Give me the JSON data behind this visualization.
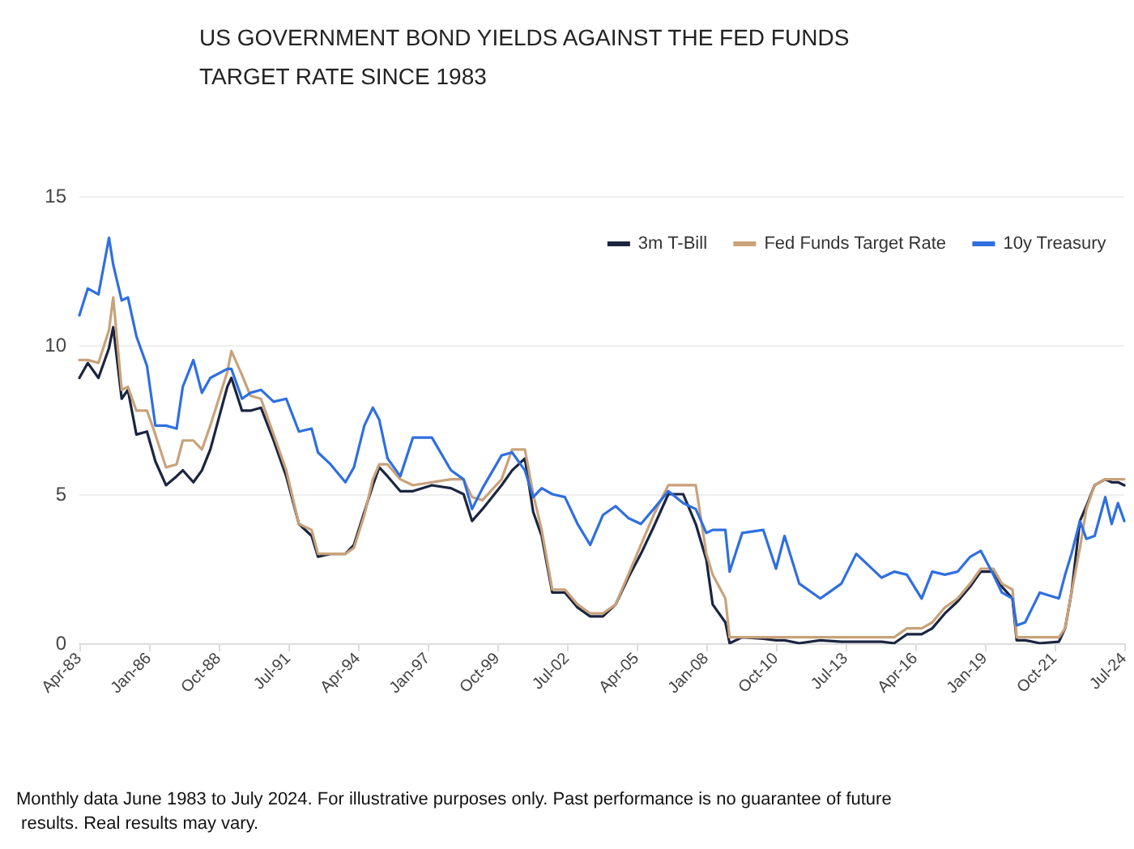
{
  "chart_data": {
    "type": "line",
    "title": "US GOVERNMENT BOND YIELDS AGAINST THE FED FUNDS TARGET RATE SINCE 1983",
    "x": [
      "1983-04",
      "1983-08",
      "1984-01",
      "1984-06",
      "1984-08",
      "1984-12",
      "1985-03",
      "1985-07",
      "1985-12",
      "1986-04",
      "1986-09",
      "1987-02",
      "1987-05",
      "1987-10",
      "1988-02",
      "1988-06",
      "1989-02",
      "1989-04",
      "1989-09",
      "1990-01",
      "1990-06",
      "1990-12",
      "1991-06",
      "1991-12",
      "1992-06",
      "1992-09",
      "1993-03",
      "1993-10",
      "1994-02",
      "1994-07",
      "1994-11",
      "1995-02",
      "1995-06",
      "1995-12",
      "1996-06",
      "1997-03",
      "1997-12",
      "1998-06",
      "1998-10",
      "1999-03",
      "1999-12",
      "2000-05",
      "2000-11",
      "2001-03",
      "2001-07",
      "2001-12",
      "2002-06",
      "2002-12",
      "2003-06",
      "2003-12",
      "2004-06",
      "2004-12",
      "2005-06",
      "2005-12",
      "2006-07",
      "2007-02",
      "2007-08",
      "2008-01",
      "2008-04",
      "2008-10",
      "2008-12",
      "2009-06",
      "2010-04",
      "2010-10",
      "2011-02",
      "2011-09",
      "2012-07",
      "2013-05",
      "2013-12",
      "2014-12",
      "2015-06",
      "2015-12",
      "2016-07",
      "2016-12",
      "2017-06",
      "2017-12",
      "2018-06",
      "2018-11",
      "2019-05",
      "2019-09",
      "2020-02",
      "2020-04",
      "2020-08",
      "2021-03",
      "2021-12",
      "2022-03",
      "2022-06",
      "2022-10",
      "2023-01",
      "2023-05",
      "2023-10",
      "2024-01",
      "2024-04",
      "2024-07"
    ],
    "series": [
      {
        "name": "3m T-Bill",
        "color": "#1b2540",
        "values": [
          8.9,
          9.4,
          8.9,
          9.9,
          10.6,
          8.2,
          8.5,
          7.0,
          7.1,
          6.1,
          5.3,
          5.6,
          5.8,
          5.4,
          5.8,
          6.5,
          8.6,
          8.9,
          7.8,
          7.8,
          7.9,
          6.8,
          5.6,
          4.0,
          3.6,
          2.9,
          3.0,
          3.0,
          3.3,
          4.4,
          5.3,
          5.9,
          5.6,
          5.1,
          5.1,
          5.3,
          5.2,
          5.0,
          4.1,
          4.5,
          5.3,
          5.8,
          6.2,
          4.4,
          3.6,
          1.7,
          1.7,
          1.2,
          0.9,
          0.9,
          1.3,
          2.2,
          3.0,
          3.9,
          5.0,
          5.0,
          4.0,
          2.8,
          1.3,
          0.7,
          0.0,
          0.2,
          0.15,
          0.1,
          0.1,
          0.0,
          0.1,
          0.05,
          0.05,
          0.05,
          0.0,
          0.3,
          0.3,
          0.5,
          1.0,
          1.4,
          1.9,
          2.4,
          2.4,
          1.9,
          1.5,
          0.1,
          0.1,
          0.0,
          0.05,
          0.5,
          1.7,
          4.1,
          4.6,
          5.3,
          5.5,
          5.4,
          5.4,
          5.3
        ]
      },
      {
        "name": "Fed Funds Target Rate",
        "color": "#c9a27a",
        "values": [
          9.5,
          9.5,
          9.4,
          10.5,
          11.6,
          8.5,
          8.6,
          7.8,
          7.8,
          7.0,
          5.9,
          6.0,
          6.8,
          6.8,
          6.5,
          7.3,
          9.1,
          9.8,
          9.0,
          8.3,
          8.2,
          7.0,
          5.8,
          4.0,
          3.8,
          3.0,
          3.0,
          3.0,
          3.2,
          4.3,
          5.5,
          6.0,
          6.0,
          5.5,
          5.3,
          5.4,
          5.5,
          5.5,
          4.9,
          4.8,
          5.5,
          6.5,
          6.5,
          5.0,
          3.8,
          1.8,
          1.8,
          1.3,
          1.0,
          1.0,
          1.3,
          2.3,
          3.3,
          4.3,
          5.3,
          5.3,
          5.3,
          3.0,
          2.3,
          1.5,
          0.2,
          0.2,
          0.2,
          0.2,
          0.2,
          0.2,
          0.2,
          0.2,
          0.2,
          0.2,
          0.2,
          0.5,
          0.5,
          0.7,
          1.2,
          1.5,
          2.0,
          2.5,
          2.5,
          2.0,
          1.8,
          0.2,
          0.2,
          0.2,
          0.2,
          0.5,
          1.7,
          3.2,
          4.5,
          5.3,
          5.5,
          5.5,
          5.5,
          5.5
        ]
      },
      {
        "name": "10y Treasury",
        "color": "#2f6fe0",
        "values": [
          11.0,
          11.9,
          11.7,
          13.6,
          12.7,
          11.5,
          11.6,
          10.3,
          9.3,
          7.3,
          7.3,
          7.2,
          8.6,
          9.5,
          8.4,
          8.9,
          9.2,
          9.2,
          8.2,
          8.4,
          8.5,
          8.1,
          8.2,
          7.1,
          7.2,
          6.4,
          6.0,
          5.4,
          5.9,
          7.3,
          7.9,
          7.5,
          6.2,
          5.6,
          6.9,
          6.9,
          5.8,
          5.5,
          4.5,
          5.2,
          6.3,
          6.4,
          5.8,
          4.9,
          5.2,
          5.0,
          4.9,
          4.0,
          3.3,
          4.3,
          4.6,
          4.2,
          4.0,
          4.5,
          5.1,
          4.7,
          4.5,
          3.7,
          3.8,
          3.8,
          2.4,
          3.7,
          3.8,
          2.5,
          3.6,
          2.0,
          1.5,
          2.0,
          3.0,
          2.2,
          2.4,
          2.3,
          1.5,
          2.4,
          2.3,
          2.4,
          2.9,
          3.1,
          2.3,
          1.7,
          1.5,
          0.6,
          0.7,
          1.7,
          1.5,
          2.3,
          3.0,
          4.1,
          3.5,
          3.6,
          4.9,
          4.0,
          4.7,
          4.1
        ]
      }
    ],
    "xlim": [
      "1983-04",
      "2024-07"
    ],
    "xticks": [
      {
        "value": "1983-04",
        "label": "Apr-83"
      },
      {
        "value": "1986-01",
        "label": "Jan-86"
      },
      {
        "value": "1988-10",
        "label": "Oct-88"
      },
      {
        "value": "1991-07",
        "label": "Jul-91"
      },
      {
        "value": "1994-04",
        "label": "Apr-94"
      },
      {
        "value": "1997-01",
        "label": "Jan-97"
      },
      {
        "value": "1999-10",
        "label": "Oct-99"
      },
      {
        "value": "2002-07",
        "label": "Jul-02"
      },
      {
        "value": "2005-04",
        "label": "Apr-05"
      },
      {
        "value": "2008-01",
        "label": "Jan-08"
      },
      {
        "value": "2010-10",
        "label": "Oct-10"
      },
      {
        "value": "2013-07",
        "label": "Jul-13"
      },
      {
        "value": "2016-04",
        "label": "Apr-16"
      },
      {
        "value": "2019-01",
        "label": "Jan-19"
      },
      {
        "value": "2021-10",
        "label": "Oct-21"
      },
      {
        "value": "2024-07",
        "label": "Jul-24"
      }
    ],
    "ylim": [
      0,
      15
    ],
    "yticks": [
      0,
      5,
      10,
      15
    ],
    "grid": "y",
    "legend": "top right",
    "marker": "none",
    "line_style": "solid",
    "annotations": [
      "Monthly data June 1983 to July 2024. For illustrative purposes only. Past performance is no guarantee of future results. Real results may vary."
    ]
  }
}
